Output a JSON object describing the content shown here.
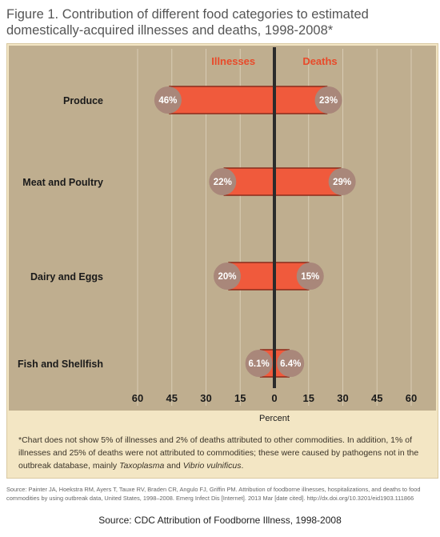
{
  "figure_title": "Figure 1.  Contribution of different food categories to estimated domestically-acquired illnesses and deaths, 1998-2008*",
  "footnote": {
    "main": "*Chart does not show 5% of illnesses and 2% of deaths attributed to other commodities. In addition, 1% of illnesses and 25% of deaths were not attributed to commodities; these were caused by pathogens not in the outbreak database, mainly",
    "organism_1": "Taxoplasma",
    "and_text": "and",
    "organism_2": "Vibrio vulnificus",
    "end": "."
  },
  "reference": "Source: Painter JA, Hoekstra RM, Ayers T, Tauxe RV, Braden CR, Angulo FJ, Griffin PM. Attribution of foodborne illnesses, hospitalizations, and deaths to food commodities by using outbreak data, United States, 1998–2008. Emerg Infect Dis [Internet]. 2013 Mar [date cited]. http://dx.doi.org/10.3201/eid1903.111866",
  "caption": "Source: CDC Attribution of Foodborne Illness, 1998-2008",
  "colors": {
    "bar_fill": "#f05a3c",
    "bar_stroke": "#8a2a1a",
    "badge": "#a9877a",
    "badge_text": "#ffffff",
    "header_text": "#e84a2a",
    "axis_line": "#2b2b2b",
    "category_text": "#1a1a1a",
    "grid": "#d8ccb4"
  },
  "chart_data": {
    "type": "bar",
    "orientation": "horizontal-diverging",
    "categories": [
      "Produce",
      "Meat and Poultry",
      "Dairy and Eggs",
      "Fish and Shellfish"
    ],
    "series": [
      {
        "name": "Illnesses",
        "side": "left",
        "values": [
          46,
          22,
          20,
          6.1
        ],
        "labels": [
          "46%",
          "22%",
          "20%",
          "6.1%"
        ]
      },
      {
        "name": "Deaths",
        "side": "right",
        "values": [
          23,
          29,
          15,
          6.4
        ],
        "labels": [
          "23%",
          "29%",
          "15%",
          "6.4%"
        ]
      }
    ],
    "xlabel": "Percent",
    "xlim": [
      -60,
      60
    ],
    "xticks": [
      -60,
      -45,
      -30,
      -15,
      0,
      15,
      30,
      45,
      60
    ],
    "xtick_labels": [
      "60",
      "45",
      "30",
      "15",
      "0",
      "15",
      "30",
      "45",
      "60"
    ],
    "grid": true
  }
}
